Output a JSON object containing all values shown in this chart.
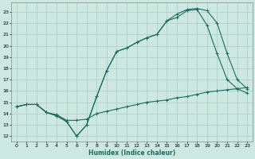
{
  "xlabel": "Humidex (Indice chaleur)",
  "bg_color": "#cce8e0",
  "grid_color": "#aacccc",
  "line_color": "#1a6b60",
  "xlim": [
    -0.5,
    23.5
  ],
  "ylim": [
    11.5,
    23.8
  ],
  "xticks": [
    0,
    1,
    2,
    3,
    4,
    5,
    6,
    7,
    8,
    9,
    10,
    11,
    12,
    13,
    14,
    15,
    16,
    17,
    18,
    19,
    20,
    21,
    22,
    23
  ],
  "yticks": [
    12,
    13,
    14,
    15,
    16,
    17,
    18,
    19,
    20,
    21,
    22,
    23
  ],
  "line1_x": [
    0,
    1,
    2,
    3,
    4,
    5,
    6,
    7,
    8,
    9,
    10,
    11,
    12,
    13,
    14,
    15,
    16,
    17,
    18,
    19,
    20,
    21,
    22,
    23
  ],
  "line1_y": [
    14.6,
    14.8,
    14.8,
    14.1,
    13.9,
    13.4,
    13.4,
    13.5,
    14.0,
    14.2,
    14.4,
    14.6,
    14.8,
    15.0,
    15.1,
    15.2,
    15.4,
    15.5,
    15.7,
    15.9,
    16.0,
    16.1,
    16.2,
    16.3
  ],
  "line2_x": [
    0,
    1,
    2,
    3,
    4,
    5,
    6,
    7,
    8,
    9,
    10,
    11,
    12,
    13,
    14,
    15,
    16,
    17,
    18,
    19,
    20,
    21,
    22,
    23
  ],
  "line2_y": [
    14.6,
    14.8,
    14.8,
    14.1,
    13.8,
    13.3,
    12.0,
    13.0,
    15.5,
    17.8,
    19.5,
    19.8,
    20.3,
    20.7,
    21.0,
    22.2,
    22.8,
    23.2,
    23.3,
    23.1,
    22.0,
    19.3,
    17.0,
    16.2
  ],
  "line3_x": [
    0,
    1,
    2,
    3,
    4,
    5,
    6,
    7,
    8,
    9,
    10,
    11,
    12,
    13,
    14,
    15,
    16,
    17,
    18,
    19,
    20,
    21,
    22,
    23
  ],
  "line3_y": [
    14.6,
    14.8,
    14.8,
    14.1,
    13.8,
    13.3,
    12.0,
    13.0,
    15.5,
    17.8,
    19.5,
    19.8,
    20.3,
    20.7,
    21.0,
    22.2,
    22.5,
    23.1,
    23.2,
    21.8,
    19.3,
    17.0,
    16.2,
    15.8
  ]
}
